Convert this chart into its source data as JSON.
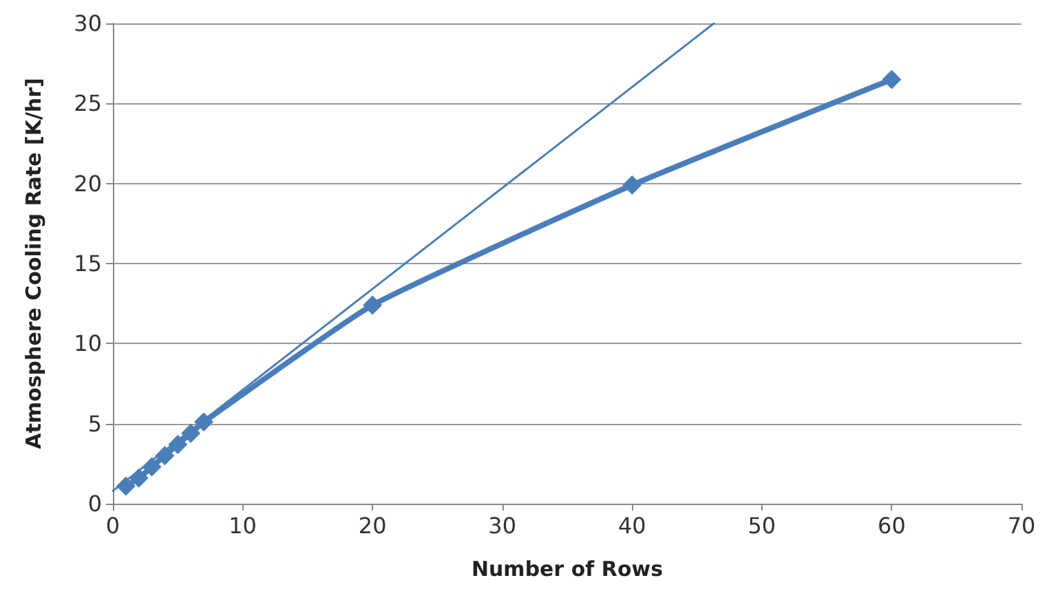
{
  "chart_data": {
    "type": "line",
    "xlabel": "Number of Rows",
    "ylabel": "Atmosphere Cooling Rate [K/hr]",
    "xlim": [
      0,
      70
    ],
    "xticks": [
      0,
      10,
      20,
      30,
      40,
      50,
      60,
      70
    ],
    "ylim": [
      0,
      30
    ],
    "yticks": [
      0,
      5,
      10,
      15,
      20,
      25,
      30
    ],
    "grid": "y",
    "series": [
      {
        "color": "#4a7ebb",
        "marker": "diamond",
        "line_style": "solid",
        "x": [
          1,
          2,
          3,
          4,
          5,
          6,
          7,
          20,
          40,
          60
        ],
        "values": [
          1.1,
          1.6,
          2.3,
          3.0,
          3.7,
          4.4,
          5.1,
          12.4,
          19.9,
          26.5
        ]
      },
      {
        "color": "#4a7ebb",
        "marker": "none",
        "line_style": "solid",
        "x": [
          0,
          46.3
        ],
        "values": [
          0.8,
          30
        ]
      }
    ]
  }
}
